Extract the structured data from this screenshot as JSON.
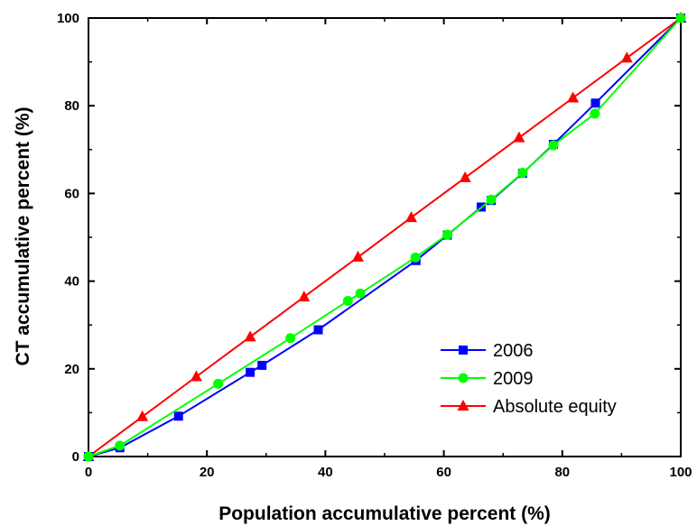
{
  "chart_data": {
    "type": "line",
    "title": "",
    "xlabel": "Population accumulative percent (%)",
    "ylabel": "CT accumulative percent (%)",
    "xlim": [
      0,
      100
    ],
    "ylim": [
      0,
      100
    ],
    "xticks": [
      0,
      20,
      40,
      60,
      80,
      100
    ],
    "yticks": [
      0,
      20,
      40,
      60,
      80,
      100
    ],
    "grid": false,
    "legend_position": "bottom-right",
    "series": [
      {
        "name": "2006",
        "color": "#0000ff",
        "marker": "square",
        "points": [
          {
            "x": 0,
            "y": 0
          },
          {
            "x": 5.3,
            "y": 2.0
          },
          {
            "x": 15.2,
            "y": 9.2
          },
          {
            "x": 27.3,
            "y": 19.2
          },
          {
            "x": 29.3,
            "y": 20.8
          },
          {
            "x": 38.8,
            "y": 28.9
          },
          {
            "x": 55.3,
            "y": 44.7
          },
          {
            "x": 60.6,
            "y": 50.5
          },
          {
            "x": 66.3,
            "y": 56.9
          },
          {
            "x": 68.0,
            "y": 58.4
          },
          {
            "x": 73.3,
            "y": 64.6
          },
          {
            "x": 78.5,
            "y": 71.2
          },
          {
            "x": 85.6,
            "y": 80.6
          },
          {
            "x": 100,
            "y": 100
          }
        ]
      },
      {
        "name": "2009",
        "color": "#00ff00",
        "marker": "circle",
        "points": [
          {
            "x": 0,
            "y": 0
          },
          {
            "x": 5.3,
            "y": 2.5
          },
          {
            "x": 21.9,
            "y": 16.6
          },
          {
            "x": 34.1,
            "y": 27.0
          },
          {
            "x": 43.8,
            "y": 35.5
          },
          {
            "x": 45.9,
            "y": 37.2
          },
          {
            "x": 55.2,
            "y": 45.4
          },
          {
            "x": 60.6,
            "y": 50.6
          },
          {
            "x": 68.0,
            "y": 58.6
          },
          {
            "x": 73.3,
            "y": 64.7
          },
          {
            "x": 78.5,
            "y": 71.0
          },
          {
            "x": 85.5,
            "y": 78.2
          },
          {
            "x": 100,
            "y": 100
          }
        ]
      },
      {
        "name": "Absolute equity",
        "color": "#ff0000",
        "marker": "triangle",
        "points": [
          {
            "x": 0,
            "y": 0
          },
          {
            "x": 9.1,
            "y": 9.1
          },
          {
            "x": 18.2,
            "y": 18.2
          },
          {
            "x": 27.3,
            "y": 27.3
          },
          {
            "x": 36.4,
            "y": 36.4
          },
          {
            "x": 45.5,
            "y": 45.5
          },
          {
            "x": 54.5,
            "y": 54.5
          },
          {
            "x": 63.6,
            "y": 63.6
          },
          {
            "x": 72.7,
            "y": 72.7
          },
          {
            "x": 81.8,
            "y": 81.8
          },
          {
            "x": 90.9,
            "y": 90.9
          },
          {
            "x": 100,
            "y": 100
          }
        ]
      }
    ]
  }
}
